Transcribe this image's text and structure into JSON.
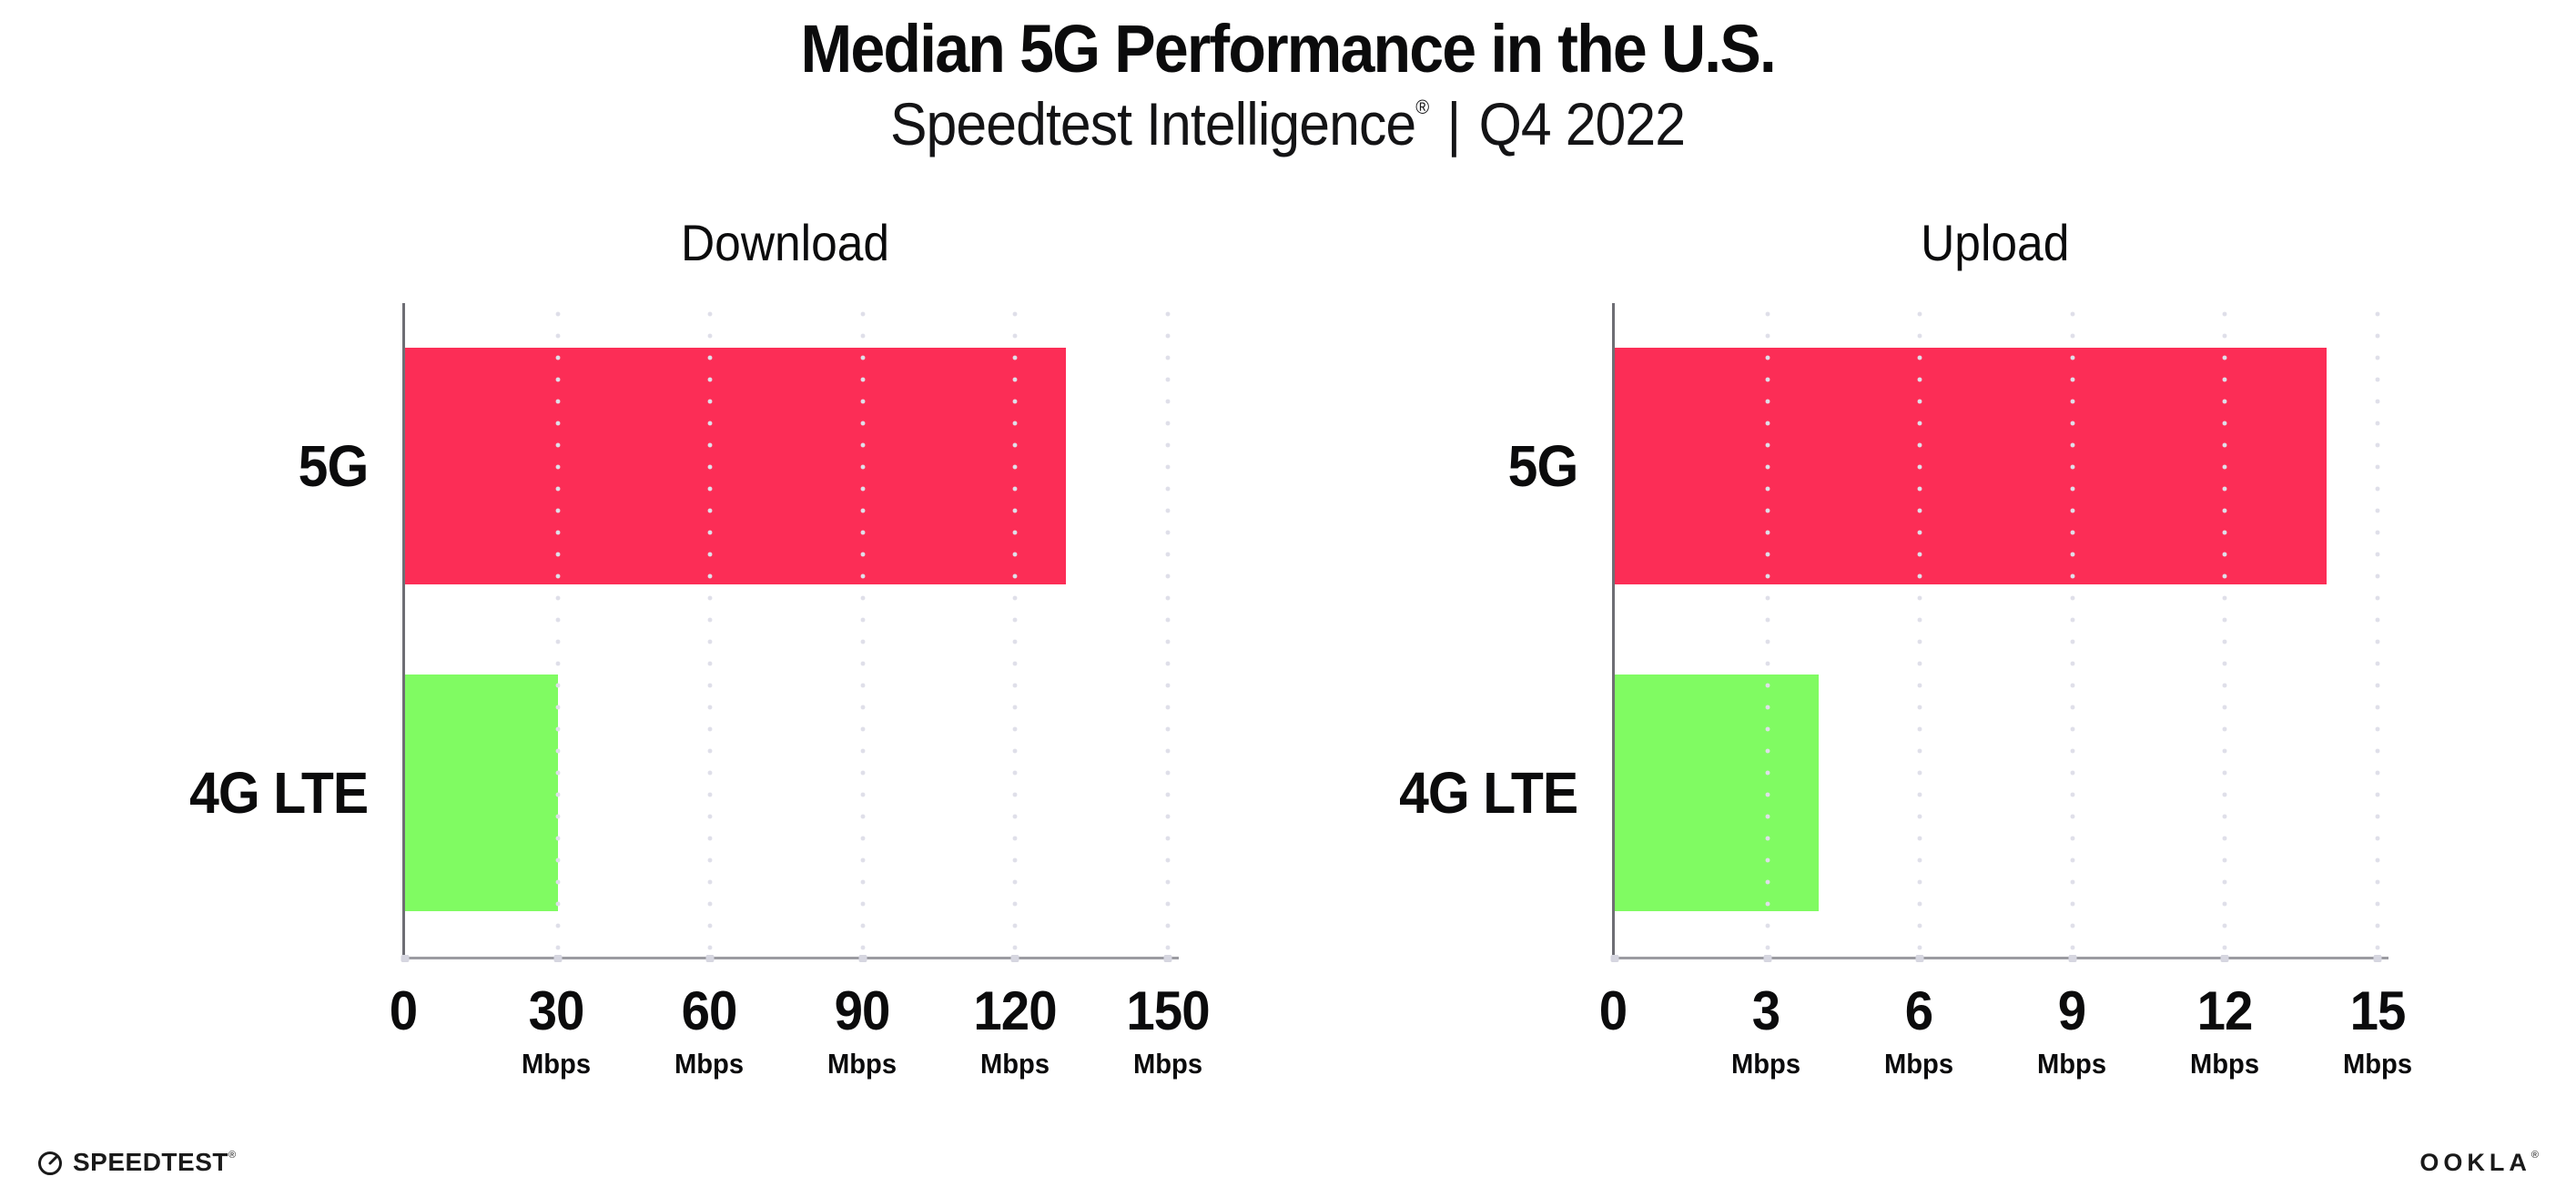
{
  "header": {
    "title": "Median 5G Performance in the U.S.",
    "subtitle": {
      "brand": "Speedtest Intelligence",
      "registered_mark": "®",
      "separator": "|",
      "period": "Q4 2022"
    }
  },
  "chart_data": [
    {
      "type": "bar",
      "orientation": "horizontal",
      "title": "Download",
      "categories": [
        "5G",
        "4G LTE"
      ],
      "values": [
        130,
        30
      ],
      "value_unit": "Mbps",
      "xlim": [
        0,
        150
      ],
      "xticks": [
        {
          "value": 0,
          "label": "0",
          "unit": ""
        },
        {
          "value": 30,
          "label": "30",
          "unit": "Mbps"
        },
        {
          "value": 60,
          "label": "60",
          "unit": "Mbps"
        },
        {
          "value": 90,
          "label": "90",
          "unit": "Mbps"
        },
        {
          "value": 120,
          "label": "120",
          "unit": "Mbps"
        },
        {
          "value": 150,
          "label": "150",
          "unit": "Mbps"
        }
      ],
      "bar_colors": [
        "#FC2D56",
        "#80FB62"
      ],
      "grid": "dotted-vertical",
      "legend": "none"
    },
    {
      "type": "bar",
      "orientation": "horizontal",
      "title": "Upload",
      "categories": [
        "5G",
        "4G LTE"
      ],
      "values": [
        14,
        4
      ],
      "value_unit": "Mbps",
      "xlim": [
        0,
        15
      ],
      "xticks": [
        {
          "value": 0,
          "label": "0",
          "unit": ""
        },
        {
          "value": 3,
          "label": "3",
          "unit": "Mbps"
        },
        {
          "value": 6,
          "label": "6",
          "unit": "Mbps"
        },
        {
          "value": 9,
          "label": "9",
          "unit": "Mbps"
        },
        {
          "value": 12,
          "label": "12",
          "unit": "Mbps"
        },
        {
          "value": 15,
          "label": "15",
          "unit": "Mbps"
        }
      ],
      "bar_colors": [
        "#FC2D56",
        "#80FB62"
      ],
      "grid": "dotted-vertical",
      "legend": "none"
    }
  ],
  "colors": {
    "bar_5g": "#FC2D56",
    "bar_4g_lte": "#80FB62",
    "y_axis_line": "#6E6E74",
    "x_axis_line": "#9B9BA1",
    "gridline_dots": "#DFDFE9",
    "text": "#0B0B0C"
  },
  "footer": {
    "speedtest_wordmark": "SPEEDTEST",
    "speedtest_mark": "®",
    "ookla_wordmark": "OOKLA",
    "ookla_mark": "®"
  }
}
